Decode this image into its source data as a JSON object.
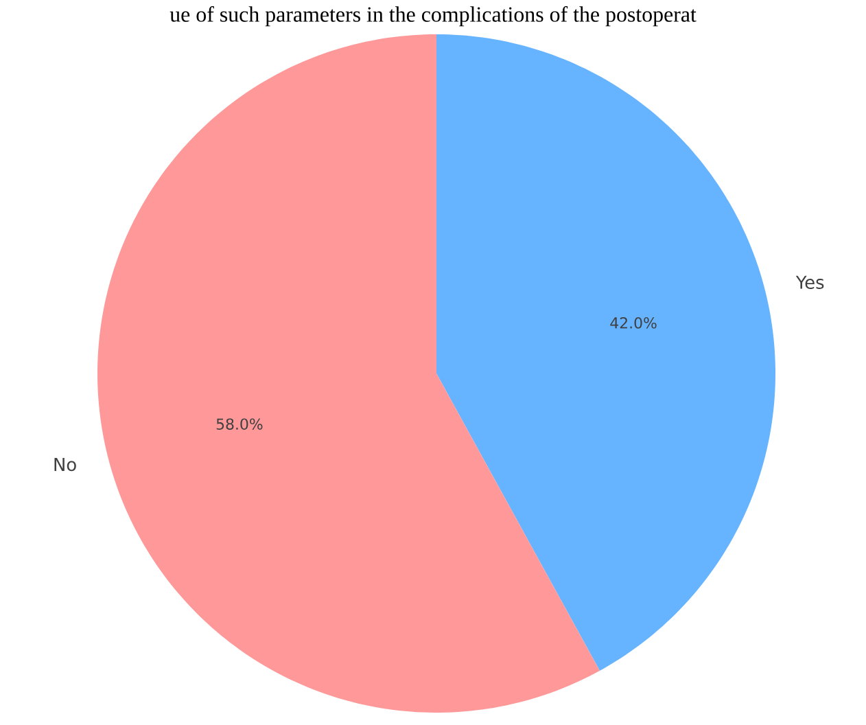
{
  "chart_data": {
    "type": "pie",
    "title": "ue of such parameters in the complications of the postoperat",
    "categories": [
      "Yes",
      "No"
    ],
    "values": [
      42,
      58
    ],
    "colors": [
      "#66b3ff",
      "#ff9999"
    ],
    "value_labels": [
      "42.0%",
      "58.0%"
    ]
  }
}
